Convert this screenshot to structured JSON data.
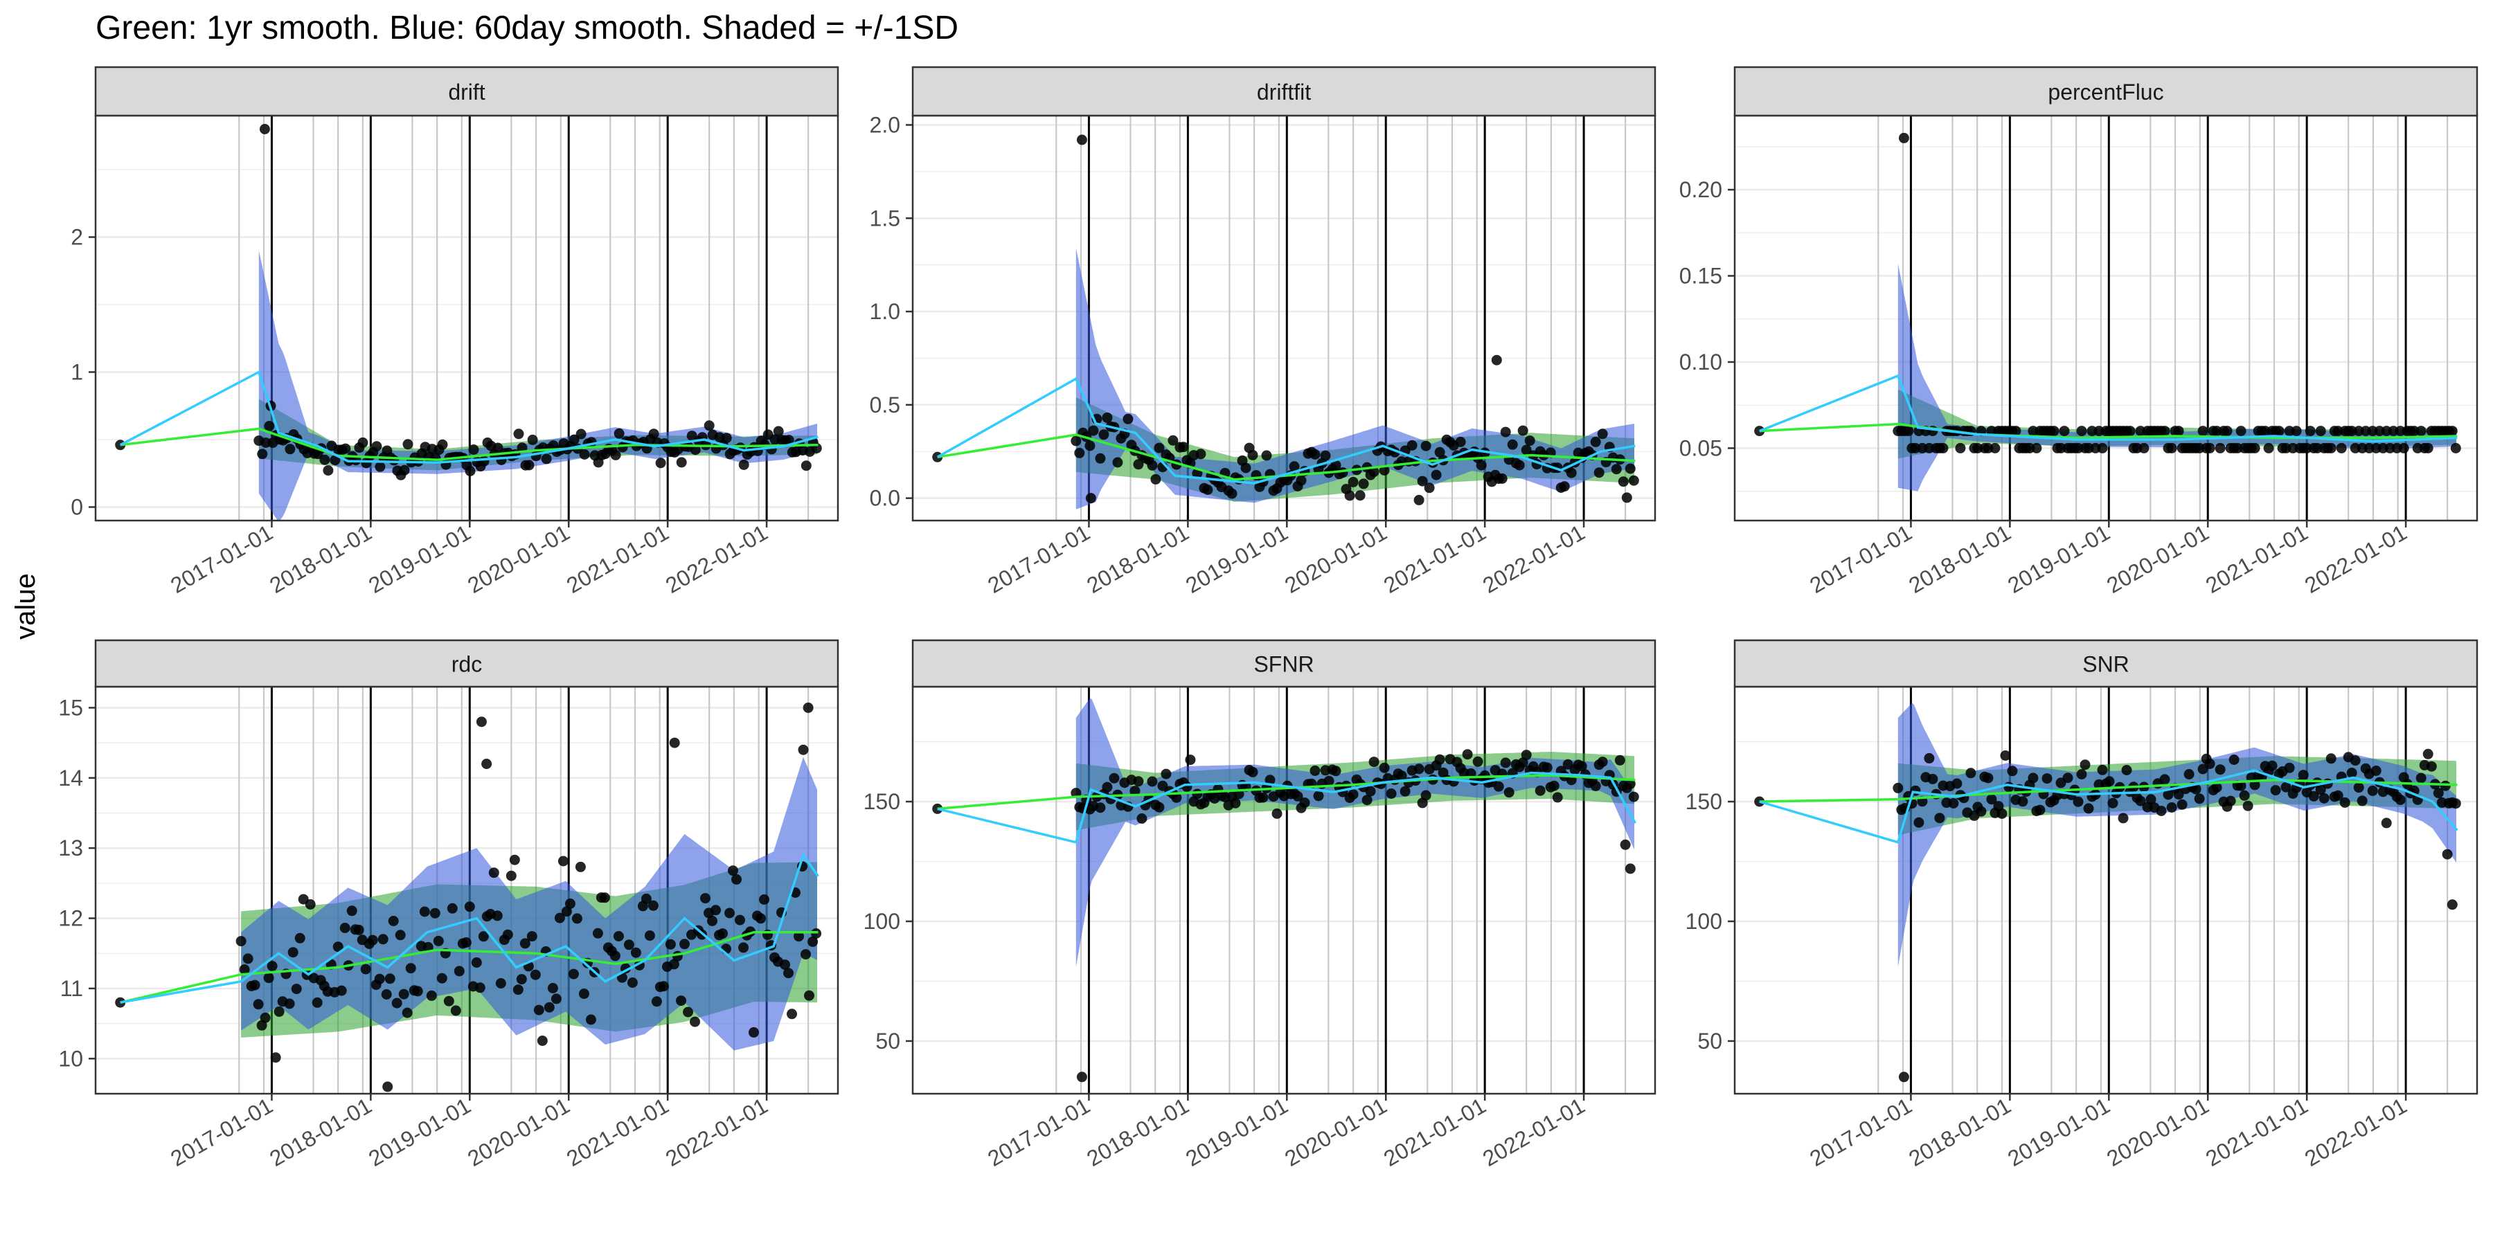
{
  "figure": {
    "title": "Green: 1yr smooth. Blue: 60day smooth. Shaded = +/-1SD",
    "ylabel": "value"
  },
  "colors": {
    "points": "#000000",
    "smooth_1yr": "#33ee33",
    "band_1yr": "#2ca02c",
    "smooth_60day": "#33ccff",
    "band_60day": "#3355dd",
    "strip_fill": "#d9d9d9",
    "grid": "#ebebeb",
    "vline_major": "#000000",
    "vline_minor": "#c8c8c8"
  },
  "chart_data": [
    {
      "type": "scatter",
      "facet": "drift",
      "ylim": [
        -0.1,
        2.9
      ],
      "yticks": [
        0,
        1,
        2
      ],
      "xticks": [
        "2017-01-01",
        "2018-01-01",
        "2019-01-01",
        "2020-01-01",
        "2021-01-01",
        "2022-01-01"
      ],
      "base": 0.4,
      "noise": 0.07,
      "t0": 0.55,
      "wave": 0.04,
      "outliers": [
        [
          2016.76,
          2.8
        ],
        [
          2016.82,
          0.75
        ]
      ],
      "green": [
        [
          2015.3,
          0.46
        ],
        [
          2016.7,
          0.58
        ],
        [
          2017.5,
          0.38
        ],
        [
          2018.5,
          0.35
        ],
        [
          2019.5,
          0.42
        ],
        [
          2020.5,
          0.46
        ],
        [
          2021.5,
          0.45
        ],
        [
          2022.35,
          0.46
        ]
      ],
      "green_sd": [
        [
          2016.7,
          0.22
        ],
        [
          2017.5,
          0.08
        ],
        [
          2022.35,
          0.07
        ]
      ],
      "blue": [
        [
          2015.3,
          0.46
        ],
        [
          2016.7,
          1.0
        ],
        [
          2016.9,
          0.55
        ],
        [
          2017.3,
          0.45
        ],
        [
          2017.6,
          0.34
        ],
        [
          2018.5,
          0.33
        ],
        [
          2019.3,
          0.37
        ],
        [
          2019.8,
          0.43
        ],
        [
          2020.3,
          0.5
        ],
        [
          2020.7,
          0.45
        ],
        [
          2021.2,
          0.5
        ],
        [
          2021.6,
          0.42
        ],
        [
          2022.0,
          0.45
        ],
        [
          2022.35,
          0.52
        ]
      ],
      "blue_sd": [
        [
          2016.7,
          0.9
        ],
        [
          2016.95,
          0.6
        ],
        [
          2017.2,
          0.08
        ],
        [
          2022.35,
          0.1
        ]
      ]
    },
    {
      "type": "scatter",
      "facet": "driftfit",
      "ylim": [
        -0.12,
        2.05
      ],
      "yticks": [
        0.0,
        0.5,
        1.0,
        1.5,
        2.0
      ],
      "xticks": [
        "2017-01-01",
        "2018-01-01",
        "2019-01-01",
        "2020-01-01",
        "2021-01-01",
        "2022-01-01"
      ],
      "base": 0.18,
      "noise": 0.09,
      "t0": 0.35,
      "wave": 0.06,
      "outliers": [
        [
          2016.76,
          1.92
        ],
        [
          2016.85,
          0.0
        ],
        [
          2020.95,
          0.74
        ]
      ],
      "green": [
        [
          2015.3,
          0.22
        ],
        [
          2016.7,
          0.34
        ],
        [
          2017.5,
          0.22
        ],
        [
          2018.3,
          0.1
        ],
        [
          2019.3,
          0.14
        ],
        [
          2020.3,
          0.2
        ],
        [
          2021.3,
          0.23
        ],
        [
          2022.35,
          0.2
        ]
      ],
      "green_sd": [
        [
          2016.7,
          0.2
        ],
        [
          2017.5,
          0.12
        ],
        [
          2022.35,
          0.12
        ]
      ],
      "blue": [
        [
          2015.3,
          0.22
        ],
        [
          2016.7,
          0.64
        ],
        [
          2016.9,
          0.4
        ],
        [
          2017.3,
          0.35
        ],
        [
          2017.7,
          0.12
        ],
        [
          2018.5,
          0.08
        ],
        [
          2019.3,
          0.2
        ],
        [
          2019.8,
          0.28
        ],
        [
          2020.3,
          0.18
        ],
        [
          2020.7,
          0.26
        ],
        [
          2021.2,
          0.22
        ],
        [
          2021.6,
          0.15
        ],
        [
          2022.0,
          0.25
        ],
        [
          2022.35,
          0.28
        ]
      ],
      "blue_sd": [
        [
          2016.7,
          0.7
        ],
        [
          2016.95,
          0.35
        ],
        [
          2017.2,
          0.1
        ],
        [
          2022.35,
          0.12
        ]
      ]
    },
    {
      "type": "scatter",
      "facet": "percentFluc",
      "ylim": [
        0.008,
        0.243
      ],
      "yticks": [
        0.05,
        0.1,
        0.15,
        0.2
      ],
      "xticks": [
        "2017-01-01",
        "2018-01-01",
        "2019-01-01",
        "2020-01-01",
        "2021-01-01",
        "2022-01-01"
      ],
      "base": 0.055,
      "noise": 0.0,
      "t0": 0.06,
      "wave": 0.0,
      "discrete": [
        0.05,
        0.06
      ],
      "outliers": [
        [
          2016.76,
          0.23
        ]
      ],
      "green": [
        [
          2015.3,
          0.06
        ],
        [
          2016.7,
          0.064
        ],
        [
          2017.5,
          0.058
        ],
        [
          2018.5,
          0.056
        ],
        [
          2019.5,
          0.057
        ],
        [
          2020.5,
          0.056
        ],
        [
          2021.5,
          0.056
        ],
        [
          2022.35,
          0.057
        ]
      ],
      "green_sd": [
        [
          2016.7,
          0.02
        ],
        [
          2017.5,
          0.005
        ],
        [
          2022.35,
          0.005
        ]
      ],
      "blue": [
        [
          2015.3,
          0.06
        ],
        [
          2016.7,
          0.092
        ],
        [
          2016.9,
          0.062
        ],
        [
          2017.5,
          0.058
        ],
        [
          2018.5,
          0.055
        ],
        [
          2019.5,
          0.055
        ],
        [
          2020.5,
          0.057
        ],
        [
          2021.5,
          0.054
        ],
        [
          2022.35,
          0.056
        ]
      ],
      "blue_sd": [
        [
          2016.7,
          0.065
        ],
        [
          2016.95,
          0.03
        ],
        [
          2017.2,
          0.004
        ],
        [
          2022.35,
          0.005
        ]
      ]
    },
    {
      "type": "scatter",
      "facet": "rdc",
      "ylim": [
        9.5,
        15.3
      ],
      "yticks": [
        10,
        11,
        12,
        13,
        14,
        15
      ],
      "xticks": [
        "2017-01-01",
        "2018-01-01",
        "2019-01-01",
        "2020-01-01",
        "2021-01-01",
        "2022-01-01"
      ],
      "base": 11.4,
      "noise": 0.75,
      "t0": 11.3,
      "wave": 0.2,
      "start": 2016.52,
      "outliers": [
        [
          2018.95,
          14.8
        ],
        [
          2019.0,
          14.2
        ],
        [
          2020.9,
          14.5
        ],
        [
          2022.25,
          15.0
        ],
        [
          2022.2,
          14.4
        ],
        [
          2018.0,
          9.6
        ]
      ],
      "green": [
        [
          2015.3,
          10.8
        ],
        [
          2016.52,
          11.2
        ],
        [
          2017.5,
          11.3
        ],
        [
          2018.5,
          11.55
        ],
        [
          2019.5,
          11.5
        ],
        [
          2020.3,
          11.35
        ],
        [
          2021.0,
          11.5
        ],
        [
          2021.7,
          11.8
        ],
        [
          2022.35,
          11.8
        ]
      ],
      "green_sd": [
        [
          2016.52,
          0.9
        ],
        [
          2022.35,
          1.0
        ]
      ],
      "blue": [
        [
          2015.3,
          10.8
        ],
        [
          2016.52,
          11.1
        ],
        [
          2016.9,
          11.5
        ],
        [
          2017.2,
          11.2
        ],
        [
          2017.6,
          11.6
        ],
        [
          2018.0,
          11.3
        ],
        [
          2018.4,
          11.8
        ],
        [
          2018.9,
          12.0
        ],
        [
          2019.3,
          11.3
        ],
        [
          2019.8,
          11.6
        ],
        [
          2020.2,
          11.1
        ],
        [
          2020.6,
          11.4
        ],
        [
          2021.0,
          12.0
        ],
        [
          2021.5,
          11.4
        ],
        [
          2021.9,
          11.6
        ],
        [
          2022.2,
          12.9
        ],
        [
          2022.35,
          12.6
        ]
      ],
      "blue_sd": [
        [
          2016.52,
          0.7
        ],
        [
          2018.9,
          1.0
        ],
        [
          2020.2,
          0.9
        ],
        [
          2021.0,
          1.2
        ],
        [
          2022.2,
          1.4
        ],
        [
          2022.35,
          1.2
        ]
      ]
    },
    {
      "type": "scatter",
      "facet": "SFNR",
      "ylim": [
        28,
        198
      ],
      "yticks": [
        50,
        100,
        150
      ],
      "xticks": [
        "2017-01-01",
        "2018-01-01",
        "2019-01-01",
        "2020-01-01",
        "2021-01-01",
        "2022-01-01"
      ],
      "base": 157,
      "noise": 6,
      "t0": 150,
      "wave": 3,
      "outliers": [
        [
          2016.76,
          35
        ],
        [
          2022.3,
          122
        ],
        [
          2022.25,
          132
        ]
      ],
      "green": [
        [
          2015.3,
          147
        ],
        [
          2016.7,
          152
        ],
        [
          2017.5,
          153
        ],
        [
          2018.5,
          155
        ],
        [
          2019.5,
          157
        ],
        [
          2020.5,
          160
        ],
        [
          2021.5,
          161
        ],
        [
          2022.35,
          159
        ]
      ],
      "green_sd": [
        [
          2016.7,
          14
        ],
        [
          2017.5,
          9
        ],
        [
          2022.35,
          10
        ]
      ],
      "blue": [
        [
          2015.3,
          147
        ],
        [
          2016.7,
          133
        ],
        [
          2016.85,
          155
        ],
        [
          2017.3,
          148
        ],
        [
          2017.8,
          157
        ],
        [
          2018.5,
          158
        ],
        [
          2019.3,
          154
        ],
        [
          2019.8,
          158
        ],
        [
          2020.3,
          160
        ],
        [
          2020.8,
          158
        ],
        [
          2021.3,
          162
        ],
        [
          2021.8,
          161
        ],
        [
          2022.1,
          160
        ],
        [
          2022.35,
          141
        ]
      ],
      "blue_sd": [
        [
          2016.7,
          52
        ],
        [
          2016.95,
          30
        ],
        [
          2017.2,
          8
        ],
        [
          2022.0,
          6
        ],
        [
          2022.35,
          12
        ]
      ]
    },
    {
      "type": "scatter",
      "facet": "SNR",
      "ylim": [
        28,
        198
      ],
      "yticks": [
        50,
        100,
        150
      ],
      "xticks": [
        "2017-01-01",
        "2018-01-01",
        "2019-01-01",
        "2020-01-01",
        "2021-01-01",
        "2022-01-01"
      ],
      "base": 155,
      "noise": 8,
      "t0": 150,
      "wave": 3,
      "outliers": [
        [
          2016.76,
          35
        ],
        [
          2022.3,
          107
        ],
        [
          2022.25,
          128
        ]
      ],
      "green": [
        [
          2015.3,
          150
        ],
        [
          2016.7,
          151
        ],
        [
          2017.5,
          153
        ],
        [
          2018.5,
          155
        ],
        [
          2019.5,
          157
        ],
        [
          2020.5,
          159
        ],
        [
          2021.5,
          158
        ],
        [
          2022.35,
          157
        ]
      ],
      "green_sd": [
        [
          2016.7,
          15
        ],
        [
          2017.5,
          10
        ],
        [
          2022.35,
          10
        ]
      ],
      "blue": [
        [
          2015.3,
          150
        ],
        [
          2016.7,
          133
        ],
        [
          2016.85,
          154
        ],
        [
          2017.3,
          152
        ],
        [
          2017.8,
          157
        ],
        [
          2018.5,
          153
        ],
        [
          2019.3,
          154
        ],
        [
          2019.8,
          158
        ],
        [
          2020.3,
          163
        ],
        [
          2020.8,
          156
        ],
        [
          2021.3,
          160
        ],
        [
          2021.8,
          155
        ],
        [
          2022.1,
          150
        ],
        [
          2022.35,
          138
        ]
      ],
      "blue_sd": [
        [
          2016.7,
          52
        ],
        [
          2016.95,
          28
        ],
        [
          2017.2,
          9
        ],
        [
          2022.0,
          10
        ],
        [
          2022.35,
          14
        ]
      ]
    }
  ]
}
